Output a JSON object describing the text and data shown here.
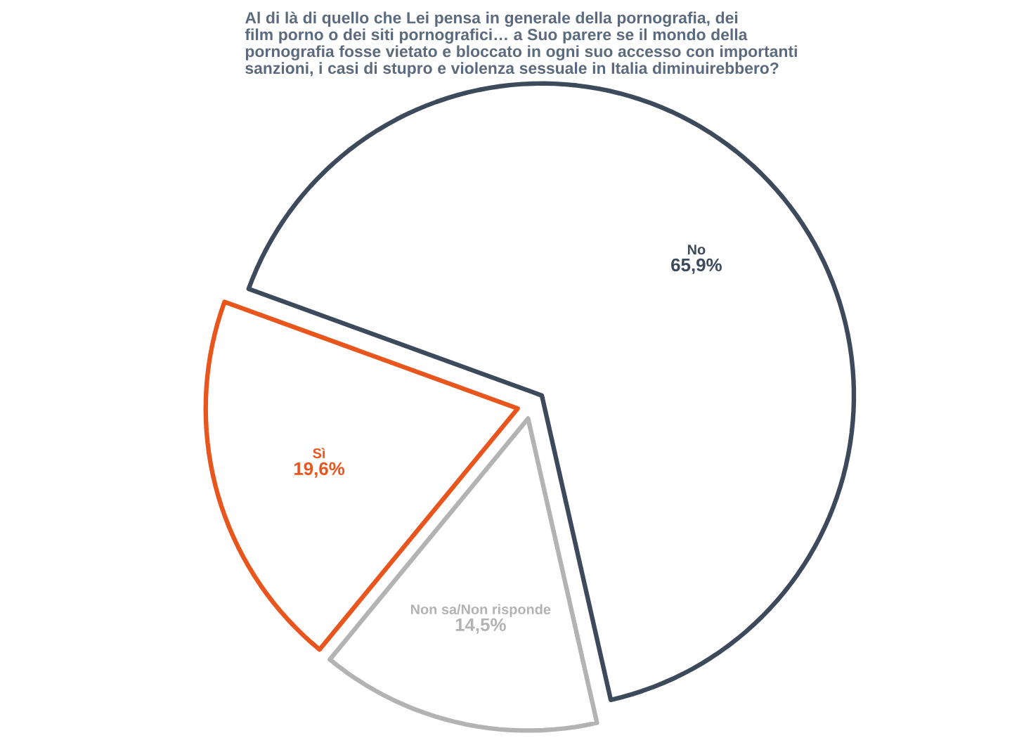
{
  "chart_data": {
    "type": "pie",
    "title": "Al di là di quello che Lei pensa in generale della pornografia, dei film porno o dei siti pornografici… a Suo parere se il mondo della pornografia fosse vietato e bloccato in ogni suo accesso con importanti sanzioni, i casi di stupro e violenza sessuale in Italia diminuirebbero?",
    "categories": [
      "No",
      "Non sa/Non risponde",
      "Sì"
    ],
    "values": [
      65.9,
      14.5,
      19.6
    ],
    "colors": [
      "#3d4a5c",
      "#b3b3b3",
      "#e8561e"
    ],
    "value_labels": [
      "65,9%",
      "14,5%",
      "19,6%"
    ]
  }
}
